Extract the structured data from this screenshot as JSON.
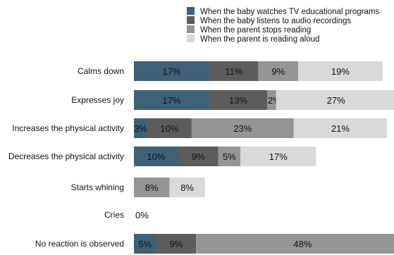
{
  "chart_data": {
    "type": "bar",
    "orientation": "horizontal",
    "stacked": true,
    "grid": false,
    "legend_position": "top-right",
    "categories": [
      "Calms down",
      "Expresses joy",
      "Increases the physical activity",
      "Decreases the physical activity",
      "Starts whining",
      "Cries",
      "No reaction is observed"
    ],
    "series": [
      {
        "name": "When the baby watches TV educational programs",
        "color": "#3e6178",
        "values": [
          17,
          17,
          3,
          10,
          0,
          0,
          5
        ]
      },
      {
        "name": "When the baby listens to audio recordings",
        "color": "#5c5c5c",
        "values": [
          11,
          13,
          10,
          9,
          0,
          0,
          9
        ]
      },
      {
        "name": "When the parent stops reading",
        "color": "#959595",
        "values": [
          9,
          2,
          23,
          5,
          8,
          0,
          48
        ]
      },
      {
        "name": "When the parent is reading aloud",
        "color": "#d9d9d9",
        "values": [
          19,
          27,
          21,
          17,
          8,
          0,
          0
        ]
      }
    ],
    "value_labels": [
      [
        "17%",
        "11%",
        "9%",
        "19%"
      ],
      [
        "17%",
        "13%",
        "2%",
        "27%"
      ],
      [
        "3%",
        "10%",
        "23%",
        "21%"
      ],
      [
        "10%",
        "9%",
        "5%",
        "17%"
      ],
      [
        "",
        "",
        "8%",
        "8%"
      ],
      [
        "0%"
      ],
      [
        "5%",
        "9%",
        "48%",
        ""
      ]
    ]
  }
}
